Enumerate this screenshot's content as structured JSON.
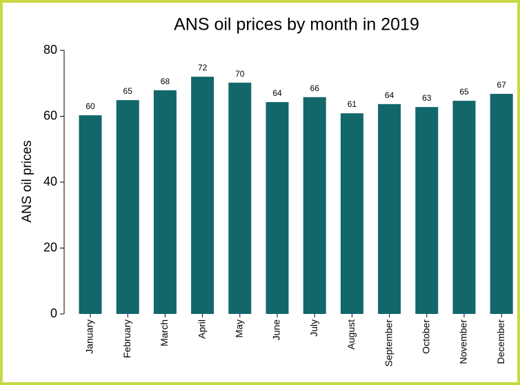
{
  "chart_data": {
    "type": "bar",
    "title": "ANS oil prices by month in 2019",
    "y_label": "ANS oil prices",
    "categories": [
      "January",
      "February",
      "March",
      "April",
      "May",
      "June",
      "July",
      "August",
      "September",
      "October",
      "November",
      "December"
    ],
    "values": [
      60.3,
      64.9,
      67.9,
      72.0,
      70.2,
      64.3,
      65.8,
      60.9,
      63.7,
      62.8,
      64.7,
      66.8
    ],
    "value_labels": [
      "60",
      "65",
      "68",
      "72",
      "70",
      "64",
      "66",
      "61",
      "64",
      "63",
      "65",
      "67"
    ],
    "color": "#12676b",
    "ylim": [
      0,
      80
    ],
    "yticks": [
      0,
      20,
      40,
      60,
      80
    ]
  }
}
